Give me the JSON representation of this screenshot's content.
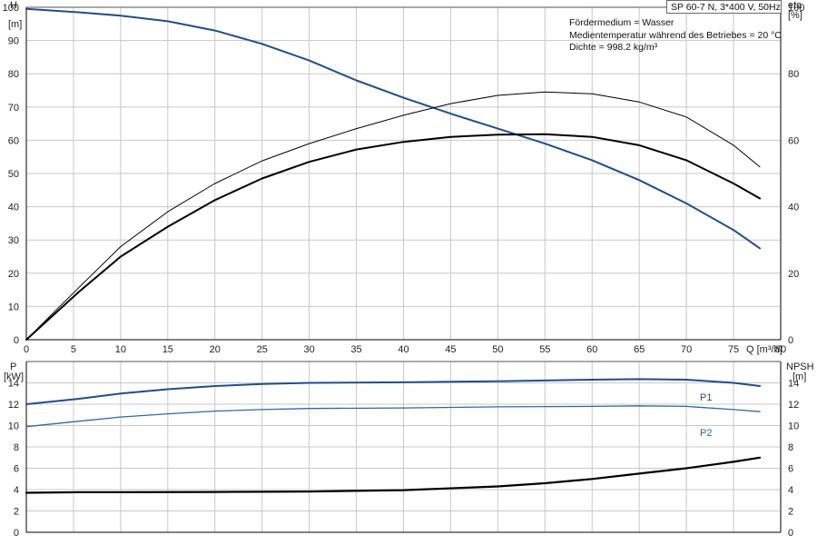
{
  "title_box": "SP 60-7 N, 3*400 V, 50Hz",
  "info_lines": [
    "Fördermedium = Wasser",
    "Medientemperatur während des Betriebes = 20 °C",
    "Dichte = 998.2 kg/m³"
  ],
  "colors": {
    "pump_blue": "#1f4e8a",
    "power_blue": "#2d68a8",
    "efficiency": "#000000",
    "grid": "#c8c8c8",
    "axis": "#000000"
  },
  "chart_data": [
    {
      "type": "line",
      "panel": "head",
      "left_axis": {
        "label": "H",
        "unit": "[m]",
        "ylim": [
          0,
          100
        ],
        "ticks": [
          0,
          10,
          20,
          30,
          40,
          50,
          60,
          70,
          80,
          90,
          100
        ]
      },
      "right_axis": {
        "label": "eta",
        "unit": "[%]",
        "ylim": [
          0,
          100
        ],
        "ticks": [
          0,
          20,
          40,
          60,
          80,
          100
        ]
      },
      "x_axis": {
        "label": "Q [m³/h]",
        "xlim": [
          0,
          80
        ],
        "ticks": [
          0,
          5,
          10,
          15,
          20,
          25,
          30,
          35,
          40,
          45,
          50,
          55,
          60,
          65,
          70,
          75,
          80
        ]
      },
      "grid": true,
      "series": [
        {
          "role": "H",
          "axis": "left",
          "color": "#1f4e8a",
          "x": [
            0,
            5.5,
            10,
            15,
            20,
            25,
            30,
            35,
            40,
            45,
            50,
            55,
            60,
            65,
            70,
            75,
            77.8
          ],
          "y": [
            99.5,
            98.5,
            97.5,
            95.8,
            93,
            89,
            84,
            78,
            72.8,
            68,
            63.5,
            59,
            54,
            48,
            41,
            33,
            27.5
          ]
        },
        {
          "role": "eta",
          "axis": "right",
          "color": "#000000",
          "x": [
            0,
            5.5,
            10,
            15,
            20,
            25,
            30,
            35,
            40,
            45,
            50,
            55,
            60,
            65,
            70,
            75,
            77.8
          ],
          "y": [
            0,
            14.2,
            25,
            34,
            42,
            48.5,
            53.5,
            57.2,
            59.5,
            61,
            61.7,
            61.8,
            61,
            58.5,
            54,
            47,
            42.5
          ]
        },
        {
          "role": "eta_thin",
          "axis": "right",
          "color": "#000000",
          "x": [
            0,
            5.5,
            10,
            15,
            20,
            25,
            30,
            35,
            40,
            45,
            50,
            55,
            60,
            65,
            70,
            75,
            77.8
          ],
          "y": [
            0,
            15.5,
            28,
            38.5,
            47,
            53.8,
            59,
            63.5,
            67.5,
            71,
            73.5,
            74.5,
            74,
            71.5,
            67,
            58.5,
            52
          ]
        }
      ]
    },
    {
      "type": "line",
      "panel": "power",
      "left_axis": {
        "label": "P",
        "unit": "[kW]",
        "ylim": [
          0,
          16
        ],
        "ticks": [
          0,
          2,
          4,
          6,
          8,
          10,
          12,
          14
        ]
      },
      "right_axis": {
        "label": "NPSH",
        "unit": "[m]",
        "ylim": [
          0,
          16
        ],
        "ticks": [
          0,
          2,
          4,
          6,
          8,
          10,
          12,
          14
        ]
      },
      "x_axis": {
        "xlim": [
          0,
          80
        ],
        "ticks": [
          0,
          5,
          10,
          15,
          20,
          25,
          30,
          35,
          40,
          45,
          50,
          55,
          60,
          65,
          70,
          75,
          80
        ]
      },
      "grid": true,
      "series": [
        {
          "name": "P1",
          "axis": "left",
          "color": "#1f4e8a",
          "x": [
            0,
            5.5,
            10,
            15,
            20,
            25,
            30,
            40,
            50,
            60,
            65,
            70,
            75,
            77.8
          ],
          "y": [
            12,
            12.5,
            13,
            13.4,
            13.7,
            13.9,
            14,
            14.05,
            14.15,
            14.3,
            14.35,
            14.3,
            14,
            13.7
          ]
        },
        {
          "name": "P2",
          "axis": "left",
          "color": "#2d68a8",
          "x": [
            0,
            5.5,
            10,
            15,
            20,
            25,
            30,
            40,
            50,
            60,
            65,
            70,
            75,
            77.8
          ],
          "y": [
            9.9,
            10.4,
            10.8,
            11.1,
            11.35,
            11.5,
            11.6,
            11.65,
            11.75,
            11.8,
            11.85,
            11.8,
            11.5,
            11.3
          ]
        },
        {
          "role": "NPSH",
          "axis": "right",
          "color": "#000000",
          "x": [
            0,
            5.5,
            10,
            20,
            25,
            30,
            40,
            50,
            55,
            60,
            65,
            70,
            75,
            77.8
          ],
          "y": [
            3.7,
            3.75,
            3.75,
            3.78,
            3.8,
            3.82,
            3.95,
            4.3,
            4.6,
            5,
            5.5,
            6,
            6.6,
            7
          ]
        }
      ]
    }
  ]
}
